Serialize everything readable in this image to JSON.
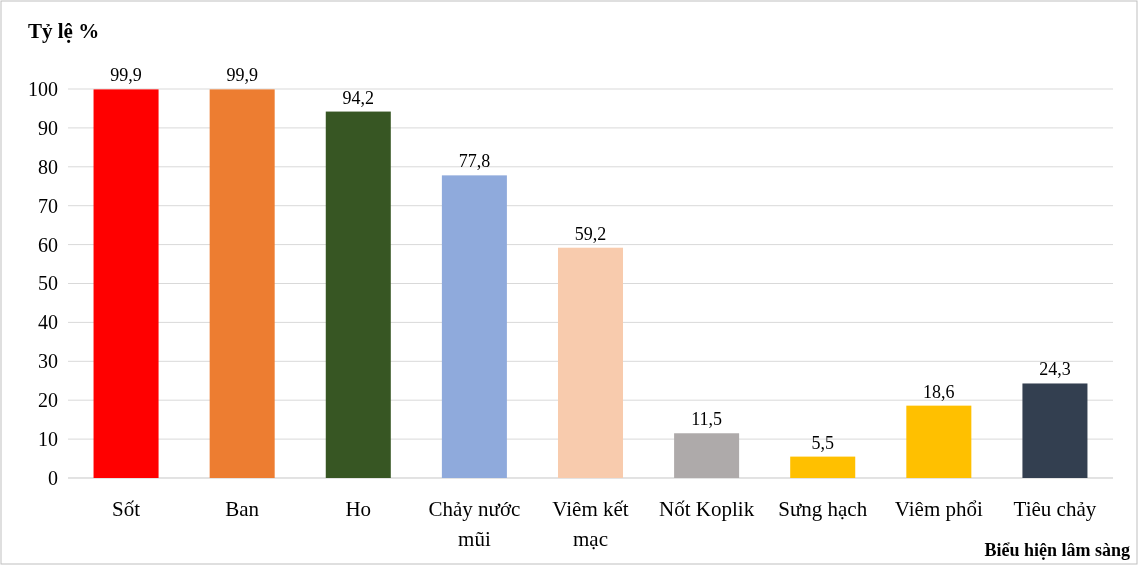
{
  "chart_data": {
    "type": "bar",
    "ylabel": "Tỷ lệ %",
    "xlabel": "Biểu hiện lâm sàng",
    "categories": [
      "Sốt",
      "Ban",
      "Ho",
      "Chảy nước mũi",
      "Viêm kết mạc",
      "Nốt Koplik",
      "Sưng hạch",
      "Viêm phổi",
      "Tiêu chảy"
    ],
    "values": [
      99.9,
      99.9,
      94.2,
      77.8,
      59.2,
      11.5,
      5.5,
      18.6,
      24.3
    ],
    "value_labels": [
      "99,9",
      "99,9",
      "94,2",
      "77,8",
      "59,2",
      "11,5",
      "5,5",
      "18,6",
      "24,3"
    ],
    "colors": [
      "#ff0000",
      "#ed7d31",
      "#375623",
      "#8faadc",
      "#f8cbad",
      "#aeaaaa",
      "#ffc000",
      "#ffc000",
      "#333f50"
    ],
    "ylim": [
      0,
      100
    ],
    "yticks": [
      0,
      10,
      20,
      30,
      40,
      50,
      60,
      70,
      80,
      90,
      100
    ],
    "grid": "y"
  }
}
